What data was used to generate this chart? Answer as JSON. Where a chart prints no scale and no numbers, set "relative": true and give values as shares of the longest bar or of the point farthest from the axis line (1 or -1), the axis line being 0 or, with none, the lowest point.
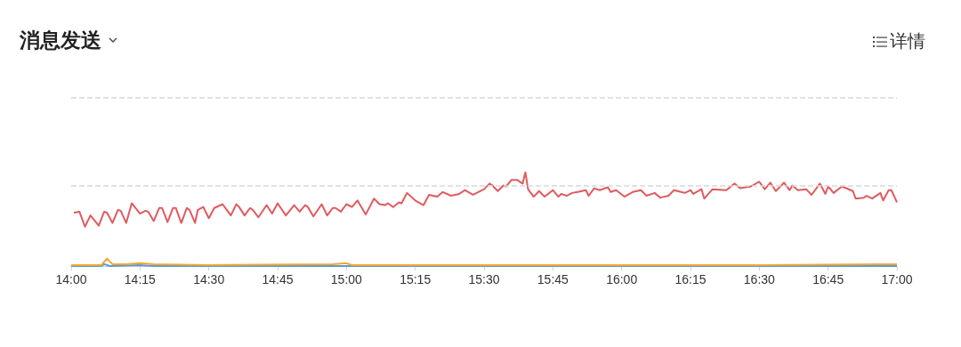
{
  "chart_data": {
    "type": "line",
    "title": "消息发送",
    "annotations": [
      "详情"
    ],
    "relative": true,
    "grid": false,
    "ref_lines": [
      {
        "axis": "y",
        "value": 0.86,
        "color": "#d9d9d9",
        "line_style": "dashed"
      },
      {
        "axis": "y",
        "value": 1.8,
        "color": "#d9d9d9",
        "line_style": "dashed"
      }
    ],
    "marker": "none",
    "line_style": "solid",
    "tick_labels": "x",
    "xlim": [
      14,
      17
    ],
    "xticks": [
      {
        "value": 14,
        "label": "14:00"
      },
      {
        "value": 14.25,
        "label": "14:15"
      },
      {
        "value": 14.5,
        "label": "14:30"
      },
      {
        "value": 14.75,
        "label": "14:45"
      },
      {
        "value": 15,
        "label": "15:00"
      },
      {
        "value": 15.25,
        "label": "15:15"
      },
      {
        "value": 15.5,
        "label": "15:30"
      },
      {
        "value": 15.75,
        "label": "15:45"
      },
      {
        "value": 16,
        "label": "16:00"
      },
      {
        "value": 16.25,
        "label": "16:15"
      },
      {
        "value": 16.5,
        "label": "16:30"
      },
      {
        "value": 16.75,
        "label": "16:45"
      },
      {
        "value": 17,
        "label": "17:00"
      }
    ],
    "series": [
      {
        "color": "#e05a5f",
        "x": [
          14.01,
          14.03,
          14.05,
          14.07,
          14.1,
          14.12,
          14.13,
          14.15,
          14.17,
          14.18,
          14.2,
          14.22,
          14.25,
          14.27,
          14.28,
          14.3,
          14.32,
          14.33,
          14.35,
          14.37,
          14.38,
          14.4,
          14.42,
          14.43,
          14.45,
          14.46,
          14.48,
          14.5,
          14.52,
          14.55,
          14.58,
          14.6,
          14.61,
          14.63,
          14.65,
          14.66,
          14.68,
          14.71,
          14.73,
          14.75,
          14.78,
          14.81,
          14.83,
          14.85,
          14.86,
          14.88,
          14.91,
          14.93,
          14.95,
          14.96,
          14.98,
          15,
          15.02,
          15.04,
          15.07,
          15.1,
          15.12,
          15.14,
          15.15,
          15.17,
          15.19,
          15.2,
          15.22,
          15.25,
          15.28,
          15.3,
          15.33,
          15.35,
          15.38,
          15.41,
          15.43,
          15.46,
          15.5,
          15.52,
          15.53,
          15.55,
          15.57,
          15.58,
          15.6,
          15.62,
          15.64,
          15.65,
          15.66,
          15.68,
          15.7,
          15.72,
          15.75,
          15.77,
          15.78,
          15.8,
          15.82,
          15.84,
          15.87,
          15.88,
          15.9,
          15.92,
          15.95,
          15.96,
          15.98,
          16.01,
          16.04,
          16.07,
          16.09,
          16.12,
          16.14,
          16.17,
          16.19,
          16.23,
          16.25,
          16.26,
          16.29,
          16.3,
          16.33,
          16.38,
          16.41,
          16.43,
          16.47,
          16.5,
          16.52,
          16.54,
          16.56,
          16.59,
          16.61,
          16.62,
          16.64,
          16.67,
          16.69,
          16.72,
          16.74,
          16.75,
          16.77,
          16.8,
          16.84,
          16.85,
          16.88,
          16.89,
          16.91,
          16.94,
          16.95,
          16.97,
          16.98,
          17
        ],
        "values": [
          0.57,
          0.58,
          0.42,
          0.54,
          0.43,
          0.58,
          0.57,
          0.46,
          0.6,
          0.59,
          0.46,
          0.67,
          0.56,
          0.59,
          0.58,
          0.48,
          0.62,
          0.62,
          0.47,
          0.62,
          0.62,
          0.46,
          0.62,
          0.6,
          0.46,
          0.6,
          0.63,
          0.51,
          0.62,
          0.66,
          0.54,
          0.66,
          0.63,
          0.54,
          0.62,
          0.6,
          0.52,
          0.65,
          0.56,
          0.67,
          0.54,
          0.65,
          0.58,
          0.65,
          0.63,
          0.53,
          0.66,
          0.54,
          0.62,
          0.62,
          0.58,
          0.66,
          0.63,
          0.7,
          0.55,
          0.72,
          0.66,
          0.65,
          0.67,
          0.63,
          0.68,
          0.67,
          0.78,
          0.7,
          0.65,
          0.76,
          0.74,
          0.79,
          0.75,
          0.77,
          0.81,
          0.76,
          0.82,
          0.88,
          0.86,
          0.8,
          0.86,
          0.85,
          0.92,
          0.92,
          0.88,
          1,
          0.82,
          0.74,
          0.8,
          0.74,
          0.81,
          0.74,
          0.77,
          0.75,
          0.78,
          0.79,
          0.81,
          0.75,
          0.83,
          0.81,
          0.84,
          0.79,
          0.81,
          0.74,
          0.79,
          0.81,
          0.75,
          0.78,
          0.73,
          0.75,
          0.81,
          0.78,
          0.81,
          0.77,
          0.82,
          0.72,
          0.82,
          0.81,
          0.88,
          0.83,
          0.85,
          0.9,
          0.82,
          0.89,
          0.8,
          0.89,
          0.81,
          0.86,
          0.81,
          0.82,
          0.76,
          0.88,
          0.77,
          0.85,
          0.78,
          0.85,
          0.8,
          0.72,
          0.73,
          0.75,
          0.72,
          0.78,
          0.7,
          0.81,
          0.81,
          0.68
        ]
      },
      {
        "color": "#5b9bd5",
        "x": [
          14,
          14.11,
          14.12,
          14.14,
          14.25,
          14.3,
          17
        ],
        "values": [
          0,
          0,
          0.02,
          0,
          0.01,
          0,
          0
        ]
      },
      {
        "color": "#f0a830",
        "x": [
          14,
          14.11,
          14.13,
          14.15,
          14.2,
          14.25,
          14.3,
          14.5,
          14.95,
          15,
          15.02,
          15.5,
          16,
          16.5,
          16.95,
          17
        ],
        "values": [
          0.01,
          0.01,
          0.08,
          0.02,
          0.02,
          0.03,
          0.02,
          0.01,
          0.02,
          0.03,
          0.01,
          0.01,
          0.01,
          0.01,
          0.02,
          0.02
        ]
      }
    ]
  }
}
